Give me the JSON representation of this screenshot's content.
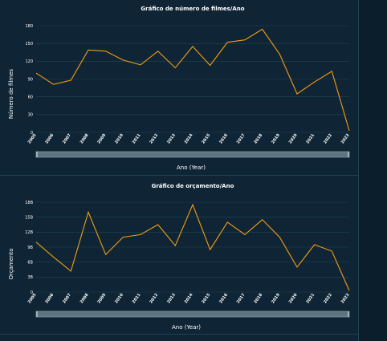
{
  "chart_data": [
    {
      "type": "line",
      "title": "Gráfico de número de filmes/Ano",
      "xlabel": "Ano (Year)",
      "ylabel": "Número de filmes",
      "categories": [
        "2005",
        "2006",
        "2007",
        "2008",
        "2009",
        "2010",
        "2011",
        "2012",
        "2013",
        "2014",
        "2015",
        "2016",
        "2017",
        "2018",
        "2019",
        "2020",
        "2021",
        "2022",
        "2023"
      ],
      "values": [
        100,
        81,
        88,
        139,
        137,
        122,
        114,
        137,
        109,
        145,
        113,
        152,
        156,
        174,
        132,
        65,
        85,
        103,
        3
      ],
      "yticks": [
        "0",
        "30",
        "60",
        "90",
        "120",
        "150",
        "180"
      ],
      "ylim": [
        0,
        180
      ],
      "grid": true,
      "color": "#f39c12"
    },
    {
      "type": "line",
      "title": "Gráfico de orçamento/Ano",
      "xlabel": "Ano (Year)",
      "ylabel": "Orçamento",
      "categories": [
        "2005",
        "2006",
        "2007",
        "2008",
        "2009",
        "2010",
        "2011",
        "2012",
        "2013",
        "2014",
        "2015",
        "2016",
        "2017",
        "2018",
        "2019",
        "2020",
        "2021",
        "2022",
        "2023"
      ],
      "values": [
        10,
        7,
        4.2,
        16,
        7.5,
        11,
        11.5,
        13.5,
        9.3,
        17.5,
        8.5,
        14,
        11.5,
        14.5,
        11,
        5,
        9.5,
        8.2,
        0.3
      ],
      "yticks": [
        "0",
        "3B",
        "6B",
        "9B",
        "12B",
        "15B",
        "18B"
      ],
      "ylim": [
        0,
        18
      ],
      "grid": true,
      "color": "#f39c12"
    }
  ]
}
